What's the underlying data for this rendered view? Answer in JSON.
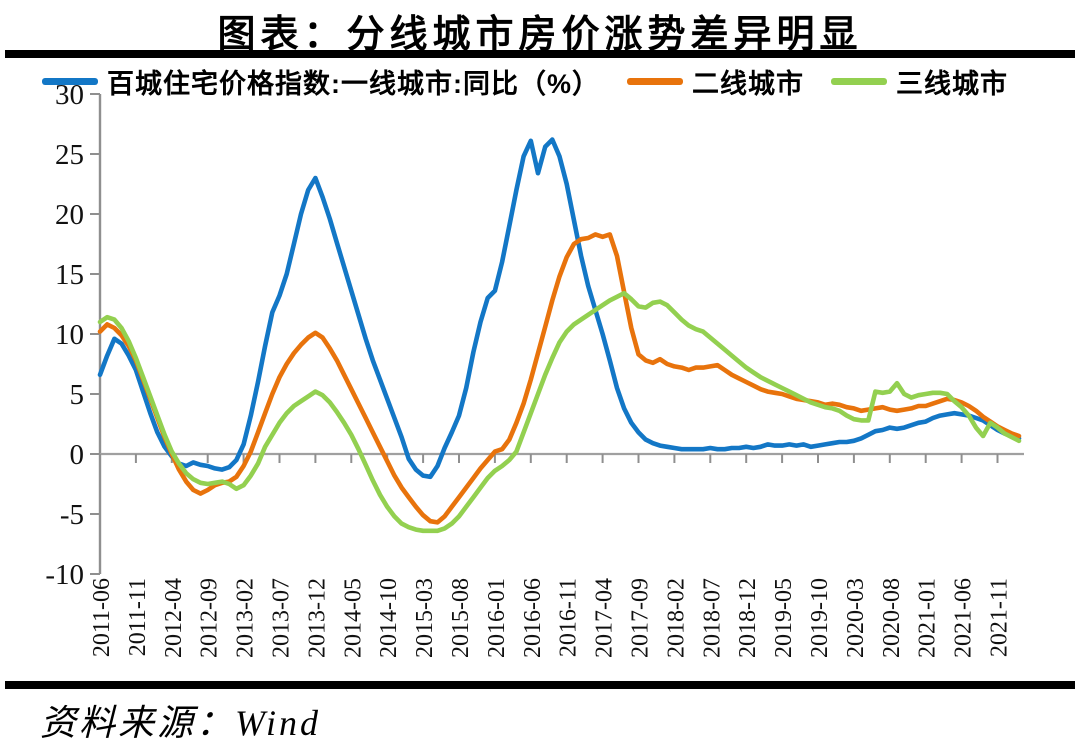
{
  "title": "图表：分线城市房价涨势差异明显",
  "source_note": "资料来源：Wind",
  "chart_data": {
    "type": "line",
    "title": "图表：分线城市房价涨势差异明显",
    "x_start": "2011-06",
    "x_end": "2022-02",
    "x_step_months": 1,
    "x_tick_labels": [
      "2011-06",
      "2011-11",
      "2012-04",
      "2012-09",
      "2013-02",
      "2013-07",
      "2013-12",
      "2014-05",
      "2014-10",
      "2015-03",
      "2015-08",
      "2016-01",
      "2016-06",
      "2016-11",
      "2017-04",
      "2017-09",
      "2018-02",
      "2018-07",
      "2018-12",
      "2019-05",
      "2019-10",
      "2020-03",
      "2020-08",
      "2021-01",
      "2021-06",
      "2021-11"
    ],
    "ylim": [
      -10,
      30
    ],
    "y_ticks": [
      30,
      25,
      20,
      15,
      10,
      5,
      0,
      -5,
      -10
    ],
    "grid": "zero-baseline-only",
    "legend_position": "top",
    "axis_color": "#8F8F8F",
    "zero_line_color": "#A0A0A0",
    "series": [
      {
        "name": "百城住宅价格指数:一线城市:同比（%）",
        "color": "#1377C6",
        "values": [
          6.6,
          8.2,
          9.6,
          9.2,
          8.2,
          7.0,
          5.2,
          3.4,
          1.8,
          0.6,
          -0.2,
          -0.8,
          -1.0,
          -0.7,
          -0.9,
          -1.0,
          -1.2,
          -1.3,
          -1.1,
          -0.5,
          0.8,
          3.2,
          6.0,
          9.0,
          11.8,
          13.2,
          15.0,
          17.5,
          20.0,
          22.0,
          23.0,
          21.4,
          19.6,
          17.6,
          15.6,
          13.6,
          11.6,
          9.6,
          7.8,
          6.2,
          4.6,
          3.0,
          1.4,
          -0.4,
          -1.3,
          -1.8,
          -1.9,
          -1.0,
          0.5,
          1.8,
          3.2,
          5.5,
          8.5,
          11.0,
          13.0,
          13.6,
          16.0,
          19.0,
          22.0,
          24.8,
          26.1,
          23.4,
          25.6,
          26.2,
          24.8,
          22.5,
          19.5,
          16.5,
          14.0,
          12.0,
          10.0,
          7.8,
          5.5,
          3.8,
          2.6,
          1.8,
          1.2,
          0.9,
          0.7,
          0.6,
          0.5,
          0.4,
          0.4,
          0.4,
          0.4,
          0.5,
          0.4,
          0.4,
          0.5,
          0.5,
          0.6,
          0.5,
          0.6,
          0.8,
          0.7,
          0.7,
          0.8,
          0.7,
          0.8,
          0.6,
          0.7,
          0.8,
          0.9,
          1.0,
          1.0,
          1.1,
          1.3,
          1.6,
          1.9,
          2.0,
          2.2,
          2.1,
          2.2,
          2.4,
          2.6,
          2.7,
          3.0,
          3.2,
          3.3,
          3.4,
          3.3,
          3.2,
          3.0,
          2.8,
          2.4,
          2.0,
          1.7,
          1.5,
          1.3
        ]
      },
      {
        "name": "二线城市",
        "color": "#E8730C",
        "values": [
          10.2,
          10.8,
          10.5,
          9.9,
          9.0,
          7.8,
          6.2,
          4.6,
          3.0,
          1.4,
          0.0,
          -1.3,
          -2.3,
          -3.0,
          -3.3,
          -3.0,
          -2.6,
          -2.4,
          -2.3,
          -1.9,
          -1.0,
          0.2,
          1.8,
          3.4,
          5.0,
          6.4,
          7.5,
          8.4,
          9.1,
          9.7,
          10.1,
          9.7,
          8.8,
          7.8,
          6.6,
          5.4,
          4.2,
          3.0,
          1.8,
          0.6,
          -0.6,
          -1.8,
          -2.8,
          -3.6,
          -4.4,
          -5.1,
          -5.6,
          -5.7,
          -5.2,
          -4.4,
          -3.6,
          -2.8,
          -2.0,
          -1.2,
          -0.5,
          0.2,
          0.4,
          1.2,
          2.6,
          4.2,
          6.2,
          8.4,
          10.6,
          12.8,
          14.8,
          16.4,
          17.5,
          17.9,
          18.0,
          18.3,
          18.1,
          18.3,
          16.5,
          13.5,
          10.5,
          8.3,
          7.8,
          7.6,
          7.9,
          7.5,
          7.3,
          7.2,
          7.0,
          7.2,
          7.2,
          7.3,
          7.4,
          7.0,
          6.6,
          6.3,
          6.0,
          5.7,
          5.4,
          5.2,
          5.1,
          5.0,
          4.8,
          4.6,
          4.5,
          4.4,
          4.3,
          4.1,
          4.2,
          4.1,
          3.9,
          3.8,
          3.6,
          3.7,
          3.8,
          3.9,
          3.7,
          3.6,
          3.7,
          3.8,
          4.0,
          4.0,
          4.2,
          4.4,
          4.6,
          4.5,
          4.3,
          4.0,
          3.6,
          3.1,
          2.7,
          2.3,
          2.0,
          1.7,
          1.5
        ]
      },
      {
        "name": "三线城市",
        "color": "#93D050",
        "values": [
          11.0,
          11.4,
          11.2,
          10.5,
          9.4,
          8.0,
          6.4,
          4.8,
          3.2,
          1.6,
          0.2,
          -0.8,
          -1.6,
          -2.1,
          -2.4,
          -2.5,
          -2.4,
          -2.3,
          -2.5,
          -2.9,
          -2.6,
          -1.8,
          -0.8,
          0.6,
          1.6,
          2.6,
          3.4,
          4.0,
          4.4,
          4.8,
          5.2,
          4.9,
          4.3,
          3.5,
          2.6,
          1.6,
          0.4,
          -0.9,
          -2.2,
          -3.4,
          -4.4,
          -5.2,
          -5.8,
          -6.1,
          -6.3,
          -6.4,
          -6.4,
          -6.4,
          -6.2,
          -5.8,
          -5.2,
          -4.4,
          -3.6,
          -2.8,
          -2.0,
          -1.4,
          -1.0,
          -0.5,
          0.2,
          1.8,
          3.4,
          5.0,
          6.6,
          8.0,
          9.3,
          10.2,
          10.8,
          11.2,
          11.6,
          12.0,
          12.4,
          12.8,
          13.1,
          13.4,
          12.9,
          12.3,
          12.2,
          12.6,
          12.7,
          12.4,
          11.8,
          11.2,
          10.7,
          10.4,
          10.2,
          9.7,
          9.2,
          8.7,
          8.2,
          7.7,
          7.2,
          6.8,
          6.4,
          6.1,
          5.8,
          5.5,
          5.2,
          4.9,
          4.6,
          4.3,
          4.1,
          3.9,
          3.8,
          3.6,
          3.2,
          2.9,
          2.8,
          2.8,
          5.2,
          5.1,
          5.2,
          5.9,
          5.0,
          4.7,
          4.9,
          5.0,
          5.1,
          5.1,
          5.0,
          4.4,
          3.9,
          3.2,
          2.2,
          1.5,
          2.6,
          2.2,
          1.7,
          1.4,
          1.1
        ]
      }
    ]
  }
}
